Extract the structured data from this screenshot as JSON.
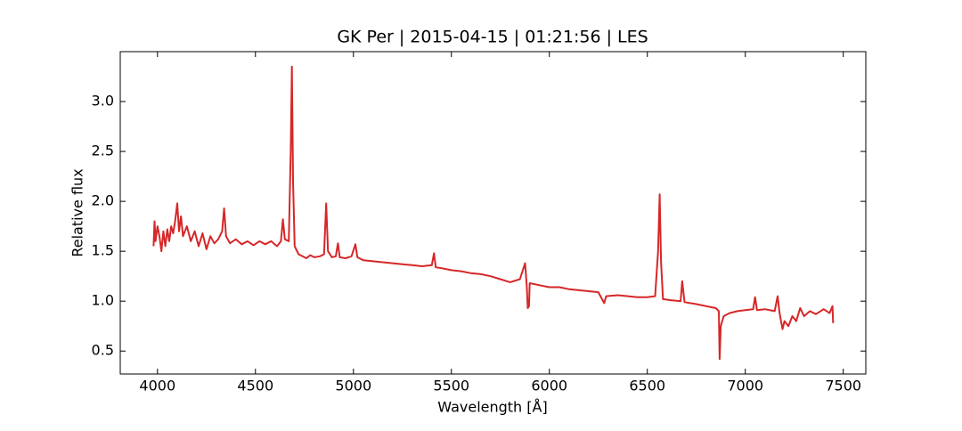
{
  "chart_data": {
    "type": "line",
    "title": "GK Per | 2015-04-15 | 01:21:56 | LES",
    "x_label": "Wavelength [Å]",
    "y_label": "Relative flux",
    "xlim": [
      3810,
      7615
    ],
    "ylim": [
      0.27,
      3.5
    ],
    "xticks": [
      4000,
      4500,
      5000,
      5500,
      6000,
      6500,
      7000,
      7500
    ],
    "yticks": [
      0.5,
      1.0,
      1.5,
      2.0,
      2.5,
      3.0
    ],
    "ytick_labels": [
      "0.5",
      "1.0",
      "1.5",
      "2.0",
      "2.5",
      "3.0"
    ],
    "series": [
      {
        "color": "#d62728",
        "x": [
          3980,
          3985,
          3990,
          4000,
          4010,
          4020,
          4030,
          4040,
          4050,
          4060,
          4070,
          4080,
          4090,
          4101,
          4110,
          4120,
          4130,
          4150,
          4170,
          4190,
          4210,
          4230,
          4250,
          4270,
          4290,
          4310,
          4330,
          4340,
          4350,
          4370,
          4400,
          4430,
          4460,
          4490,
          4520,
          4550,
          4580,
          4610,
          4630,
          4640,
          4650,
          4670,
          4680,
          4686,
          4692,
          4700,
          4720,
          4740,
          4760,
          4780,
          4800,
          4830,
          4850,
          4861,
          4870,
          4890,
          4910,
          4921,
          4930,
          4960,
          4990,
          5010,
          5020,
          5050,
          5100,
          5150,
          5200,
          5250,
          5300,
          5350,
          5400,
          5411,
          5420,
          5450,
          5500,
          5550,
          5600,
          5650,
          5700,
          5750,
          5800,
          5850,
          5876,
          5885,
          5890,
          5896,
          5900,
          5950,
          6000,
          6050,
          6100,
          6150,
          6200,
          6250,
          6280,
          6290,
          6350,
          6400,
          6450,
          6500,
          6540,
          6555,
          6563,
          6570,
          6580,
          6620,
          6670,
          6678,
          6690,
          6750,
          6800,
          6850,
          6865,
          6869,
          6875,
          6890,
          6920,
          6960,
          7000,
          7040,
          7050,
          7060,
          7100,
          7150,
          7165,
          7175,
          7190,
          7200,
          7220,
          7240,
          7260,
          7280,
          7300,
          7330,
          7360,
          7400,
          7430,
          7445,
          7448
        ],
        "values": [
          1.55,
          1.8,
          1.6,
          1.75,
          1.65,
          1.5,
          1.7,
          1.55,
          1.72,
          1.6,
          1.75,
          1.68,
          1.8,
          1.98,
          1.7,
          1.85,
          1.65,
          1.75,
          1.6,
          1.7,
          1.55,
          1.68,
          1.52,
          1.65,
          1.58,
          1.62,
          1.7,
          1.93,
          1.65,
          1.58,
          1.62,
          1.57,
          1.6,
          1.56,
          1.6,
          1.57,
          1.6,
          1.55,
          1.6,
          1.82,
          1.62,
          1.6,
          2.5,
          3.35,
          2.2,
          1.55,
          1.47,
          1.45,
          1.43,
          1.46,
          1.44,
          1.45,
          1.47,
          1.98,
          1.5,
          1.44,
          1.45,
          1.58,
          1.44,
          1.43,
          1.45,
          1.57,
          1.44,
          1.41,
          1.4,
          1.39,
          1.38,
          1.37,
          1.36,
          1.35,
          1.36,
          1.48,
          1.34,
          1.33,
          1.31,
          1.3,
          1.28,
          1.27,
          1.25,
          1.22,
          1.19,
          1.22,
          1.38,
          1.15,
          0.93,
          0.95,
          1.18,
          1.16,
          1.14,
          1.14,
          1.12,
          1.11,
          1.1,
          1.09,
          0.98,
          1.05,
          1.06,
          1.05,
          1.04,
          1.04,
          1.05,
          1.5,
          2.07,
          1.4,
          1.02,
          1.01,
          1.0,
          1.2,
          0.99,
          0.97,
          0.95,
          0.93,
          0.9,
          0.42,
          0.75,
          0.85,
          0.88,
          0.9,
          0.91,
          0.92,
          1.04,
          0.91,
          0.92,
          0.9,
          1.05,
          0.88,
          0.72,
          0.8,
          0.75,
          0.85,
          0.8,
          0.93,
          0.85,
          0.9,
          0.87,
          0.92,
          0.88,
          0.95,
          0.78
        ]
      }
    ]
  }
}
